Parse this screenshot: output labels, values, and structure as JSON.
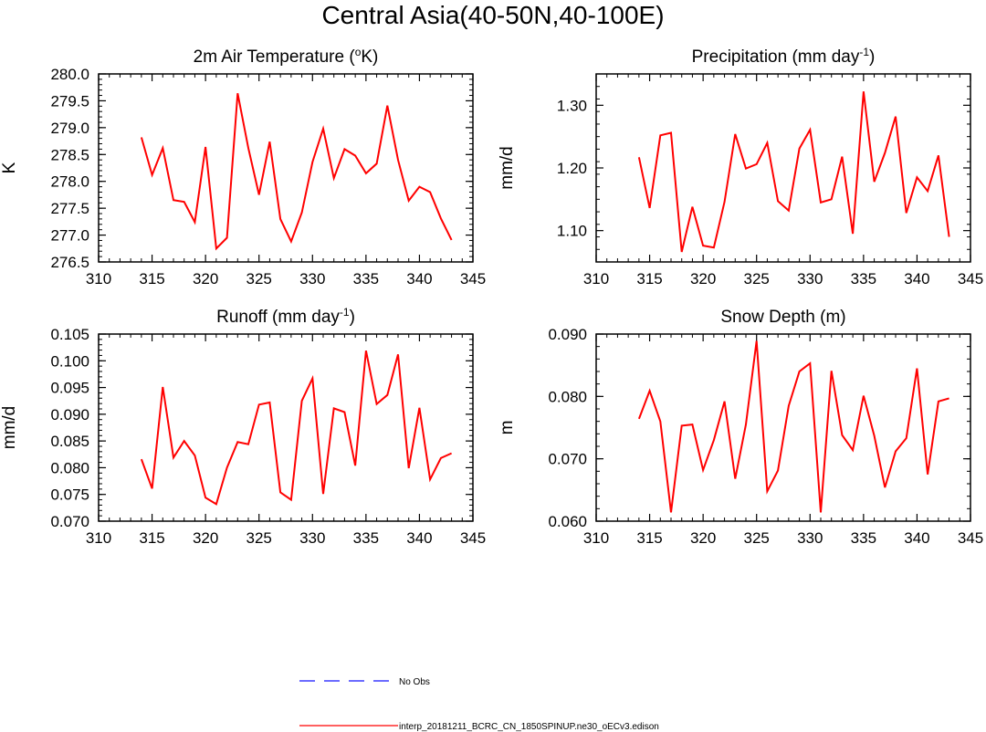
{
  "figure": {
    "title": "Central Asia(40-50N,40-100E)"
  },
  "legend": {
    "items": [
      {
        "label": "No Obs",
        "color": "#3a3aff",
        "style": "dashed"
      },
      {
        "label": "interp_20181211_BCRC_CN_1850SPINUP.ne30_oECv3.edison",
        "color": "#ff0000",
        "style": "solid"
      }
    ]
  },
  "chart_data": [
    {
      "type": "line",
      "title": "2m Air Temperature (",
      "title_sup": "o",
      "title_tail": "K)",
      "ylabel": "K",
      "xlim": [
        310,
        345
      ],
      "ylim": [
        276.5,
        280.0
      ],
      "xticks": [
        310,
        315,
        320,
        325,
        330,
        335,
        340,
        345
      ],
      "xtick_labels": [
        "310",
        "315",
        "320",
        "325",
        "330",
        "335",
        "340",
        "345"
      ],
      "yticks": [
        276.5,
        277.0,
        277.5,
        278.0,
        278.5,
        279.0,
        279.5,
        280.0
      ],
      "ytick_labels": [
        "276.5",
        "277.0",
        "277.5",
        "278.0",
        "278.5",
        "279.0",
        "279.5",
        "280.0"
      ],
      "yminor": 0.1,
      "series": [
        {
          "name": "interp_20181211_BCRC_CN_1850SPINUP.ne30_oECv3.edison",
          "color": "#ff0000",
          "x": [
            314,
            315,
            316,
            317,
            318,
            319,
            320,
            321,
            322,
            323,
            324,
            325,
            326,
            327,
            328,
            329,
            330,
            331,
            332,
            333,
            334,
            335,
            336,
            337,
            338,
            339,
            340,
            341,
            342,
            343
          ],
          "values": [
            278.82,
            278.12,
            278.62,
            277.65,
            277.62,
            277.24,
            278.64,
            276.75,
            276.95,
            279.64,
            278.62,
            277.75,
            278.74,
            277.3,
            276.88,
            277.42,
            278.36,
            278.98,
            278.06,
            278.6,
            278.48,
            278.15,
            278.33,
            279.41,
            278.4,
            277.64,
            277.9,
            277.8,
            277.31,
            276.91
          ]
        }
      ]
    },
    {
      "type": "line",
      "title": "Precipitation (mm day",
      "title_sup": "-1",
      "title_tail": ")",
      "ylabel": "mm/d",
      "xlim": [
        310,
        345
      ],
      "ylim": [
        1.05,
        1.35
      ],
      "xticks": [
        310,
        315,
        320,
        325,
        330,
        335,
        340,
        345
      ],
      "xtick_labels": [
        "310",
        "315",
        "320",
        "325",
        "330",
        "335",
        "340",
        "345"
      ],
      "yticks": [
        1.1,
        1.2,
        1.3
      ],
      "ytick_labels": [
        "1.10",
        "1.20",
        "1.30"
      ],
      "yminor": 0.02,
      "series": [
        {
          "name": "interp_20181211_BCRC_CN_1850SPINUP.ne30_oECv3.edison",
          "color": "#ff0000",
          "x": [
            314,
            315,
            316,
            317,
            318,
            319,
            320,
            321,
            322,
            323,
            324,
            325,
            326,
            327,
            328,
            329,
            330,
            331,
            332,
            333,
            334,
            335,
            336,
            337,
            338,
            339,
            340,
            341,
            342,
            343
          ],
          "values": [
            1.217,
            1.136,
            1.252,
            1.256,
            1.066,
            1.138,
            1.076,
            1.073,
            1.146,
            1.254,
            1.199,
            1.206,
            1.24,
            1.147,
            1.132,
            1.231,
            1.261,
            1.145,
            1.15,
            1.218,
            1.095,
            1.322,
            1.178,
            1.224,
            1.282,
            1.128,
            1.185,
            1.163,
            1.22,
            1.09
          ]
        }
      ]
    },
    {
      "type": "line",
      "title": "Runoff (mm day",
      "title_sup": "-1",
      "title_tail": ")",
      "ylabel": "mm/d",
      "xlim": [
        310,
        345
      ],
      "ylim": [
        0.07,
        0.105
      ],
      "xticks": [
        310,
        315,
        320,
        325,
        330,
        335,
        340,
        345
      ],
      "xtick_labels": [
        "310",
        "315",
        "320",
        "325",
        "330",
        "335",
        "340",
        "345"
      ],
      "yticks": [
        0.07,
        0.075,
        0.08,
        0.085,
        0.09,
        0.095,
        0.1,
        0.105
      ],
      "ytick_labels": [
        "0.070",
        "0.075",
        "0.080",
        "0.085",
        "0.090",
        "0.095",
        "0.100",
        "0.105"
      ],
      "yminor": 0.001,
      "series": [
        {
          "name": "interp_20181211_BCRC_CN_1850SPINUP.ne30_oECv3.edison",
          "color": "#ff0000",
          "x": [
            314,
            315,
            316,
            317,
            318,
            319,
            320,
            321,
            322,
            323,
            324,
            325,
            326,
            327,
            328,
            329,
            330,
            331,
            332,
            333,
            334,
            335,
            336,
            337,
            338,
            339,
            340,
            341,
            342,
            343
          ],
          "values": [
            0.0816,
            0.0761,
            0.0951,
            0.0819,
            0.085,
            0.0823,
            0.0744,
            0.0732,
            0.08,
            0.0848,
            0.0844,
            0.0918,
            0.0922,
            0.0754,
            0.074,
            0.0925,
            0.0967,
            0.0751,
            0.0911,
            0.0904,
            0.0804,
            0.1019,
            0.0919,
            0.0936,
            0.1012,
            0.0799,
            0.0912,
            0.0778,
            0.0818,
            0.0827
          ]
        }
      ]
    },
    {
      "type": "line",
      "title": "Snow Depth (m)",
      "title_sup": "",
      "title_tail": "",
      "ylabel": "m",
      "xlim": [
        310,
        345
      ],
      "ylim": [
        0.06,
        0.09
      ],
      "xticks": [
        310,
        315,
        320,
        325,
        330,
        335,
        340,
        345
      ],
      "xtick_labels": [
        "310",
        "315",
        "320",
        "325",
        "330",
        "335",
        "340",
        "345"
      ],
      "yticks": [
        0.06,
        0.07,
        0.08,
        0.09
      ],
      "ytick_labels": [
        "0.060",
        "0.070",
        "0.080",
        "0.090"
      ],
      "yminor": 0.002,
      "series": [
        {
          "name": "interp_20181211_BCRC_CN_1850SPINUP.ne30_oECv3.edison",
          "color": "#ff0000",
          "x": [
            314,
            315,
            316,
            317,
            318,
            319,
            320,
            321,
            322,
            323,
            324,
            325,
            326,
            327,
            328,
            329,
            330,
            331,
            332,
            333,
            334,
            335,
            336,
            337,
            338,
            339,
            340,
            341,
            342,
            343
          ],
          "values": [
            0.0764,
            0.0809,
            0.076,
            0.0614,
            0.0753,
            0.0755,
            0.0682,
            0.073,
            0.0792,
            0.0668,
            0.0755,
            0.0889,
            0.0648,
            0.0681,
            0.0785,
            0.084,
            0.0853,
            0.0614,
            0.0841,
            0.0738,
            0.0714,
            0.0801,
            0.0737,
            0.0654,
            0.0712,
            0.0733,
            0.0845,
            0.0675,
            0.0792,
            0.0797
          ]
        }
      ]
    }
  ]
}
